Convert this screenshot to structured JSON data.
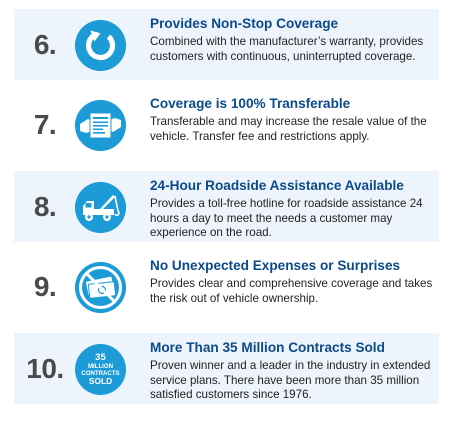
{
  "colors": {
    "accent_blue": "#1d9bd7",
    "title_blue": "#0b4a8b",
    "card_bg": "#eef4fb",
    "number_gray": "#4a4a4a"
  },
  "items": [
    {
      "number": "6.",
      "icon": "circular-arrow-icon",
      "title": "Provides Non-Stop Coverage",
      "description": "Combined with the manufacturer’s warranty, provides customers with continuous, uninterrupted coverage."
    },
    {
      "number": "7.",
      "icon": "document-transfer-icon",
      "title": "Coverage is 100% Transferable",
      "description": "Transferable and may increase the resale value of the vehicle. Transfer fee and restrictions apply."
    },
    {
      "number": "8.",
      "icon": "tow-truck-icon",
      "title": "24-Hour Roadside Assistance Available",
      "description": "Provides a toll-free hotline for roadside assistance 24 hours a day to meet the needs a customer may experience on the road."
    },
    {
      "number": "9.",
      "icon": "no-money-icon",
      "title": "No Unexpected Expenses or Surprises",
      "description": "Provides clear and comprehensive coverage and takes the risk out of vehicle ownership."
    },
    {
      "number": "10.",
      "icon": "contracts-sold-badge",
      "title": "More Than 35 Million Contracts Sold",
      "description": "Proven winner and a leader in the industry in extended service plans. There have been more than 35 million satisfied customers since 1976.",
      "badge": {
        "line1": "35",
        "line2": "MILLION",
        "line3": "CONTRACTS",
        "line4": "SOLD"
      }
    }
  ]
}
